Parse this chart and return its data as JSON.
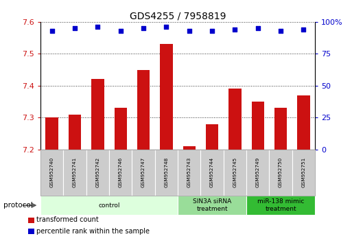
{
  "title": "GDS4255 / 7958819",
  "samples": [
    "GSM952740",
    "GSM952741",
    "GSM952742",
    "GSM952746",
    "GSM952747",
    "GSM952748",
    "GSM952743",
    "GSM952744",
    "GSM952745",
    "GSM952749",
    "GSM952750",
    "GSM952751"
  ],
  "red_values": [
    7.3,
    7.31,
    7.42,
    7.33,
    7.45,
    7.53,
    7.21,
    7.28,
    7.39,
    7.35,
    7.33,
    7.37
  ],
  "blue_values": [
    93,
    95,
    96,
    93,
    95,
    96,
    93,
    93,
    94,
    95,
    93,
    94
  ],
  "ylim_left": [
    7.2,
    7.6
  ],
  "ylim_right": [
    0,
    100
  ],
  "yticks_left": [
    7.2,
    7.3,
    7.4,
    7.5,
    7.6
  ],
  "yticks_right": [
    0,
    25,
    50,
    75,
    100
  ],
  "bar_color": "#cc1111",
  "dot_color": "#0000cc",
  "bg_color": "#ffffff",
  "plot_bg": "#ffffff",
  "grid_color": "#000000",
  "protocol_groups": [
    {
      "label": "control",
      "start": 0,
      "end": 6,
      "color": "#ddffdd"
    },
    {
      "label": "SIN3A siRNA\ntreatment",
      "start": 6,
      "end": 9,
      "color": "#99dd99"
    },
    {
      "label": "miR-138 mimic\ntreatment",
      "start": 9,
      "end": 12,
      "color": "#33bb33"
    }
  ],
  "legend_items": [
    {
      "color": "#cc1111",
      "label": "transformed count"
    },
    {
      "color": "#0000cc",
      "label": "percentile rank within the sample"
    }
  ],
  "protocol_label": "protocol",
  "tick_fontsize": 8,
  "title_fontsize": 10
}
